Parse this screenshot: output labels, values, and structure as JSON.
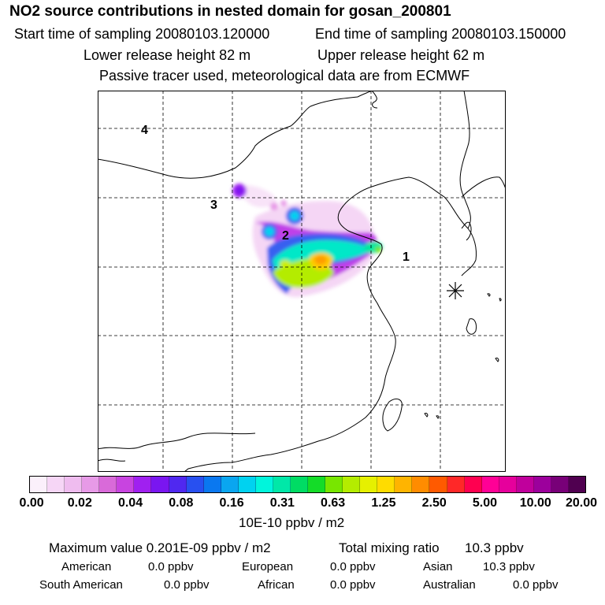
{
  "header": {
    "title": "NO2 source contributions in nested domain for gosan_200801",
    "start_sampling": "Start time of sampling 20080103.120000",
    "end_sampling": "End time of sampling 20080103.150000",
    "lower_release": "Lower release height   82 m",
    "upper_release": "Upper release height   62 m",
    "tracer_note": "Passive tracer used, meteorological data are from ECMWF"
  },
  "map": {
    "source_labels": [
      "1",
      "2",
      "3",
      "4"
    ],
    "receptor_marker": "star-marker"
  },
  "legend": {
    "colors": [
      "#fbf0fb",
      "#f6d6f6",
      "#efbcef",
      "#e79ae7",
      "#d96ad9",
      "#c844e0",
      "#a020f0",
      "#7a16f0",
      "#5028f0",
      "#2850f0",
      "#0a78f0",
      "#0aa6f0",
      "#00d2f0",
      "#00f5dc",
      "#00e8a8",
      "#00dc64",
      "#14dc28",
      "#78e600",
      "#b4ec00",
      "#e6f000",
      "#ffdc00",
      "#ffb400",
      "#ff8c00",
      "#ff5a00",
      "#ff2828",
      "#ff0050",
      "#ff0096",
      "#e6009c",
      "#c0009c",
      "#9c009c",
      "#780078",
      "#500050"
    ],
    "ticks": [
      "0.00",
      "0.02",
      "0.04",
      "0.08",
      "0.16",
      "0.31",
      "0.63",
      "1.25",
      "2.50",
      "5.00",
      "10.00",
      "20.00"
    ],
    "units": "10E-10 ppbv / m2"
  },
  "summary": {
    "maximum": "Maximum value  0.201E-09 ppbv / m2",
    "total_label": "Total mixing ratio",
    "total_value": "10.3 ppbv",
    "regions": [
      {
        "name": "American",
        "value": "0.0 ppbv"
      },
      {
        "name": "European",
        "value": "0.0 ppbv"
      },
      {
        "name": "Asian",
        "value": "10.3 ppbv"
      },
      {
        "name": "South American",
        "value": "0.0 ppbv"
      },
      {
        "name": "African",
        "value": "0.0 ppbv"
      },
      {
        "name": "Australian",
        "value": "0.0 ppbv"
      }
    ]
  }
}
